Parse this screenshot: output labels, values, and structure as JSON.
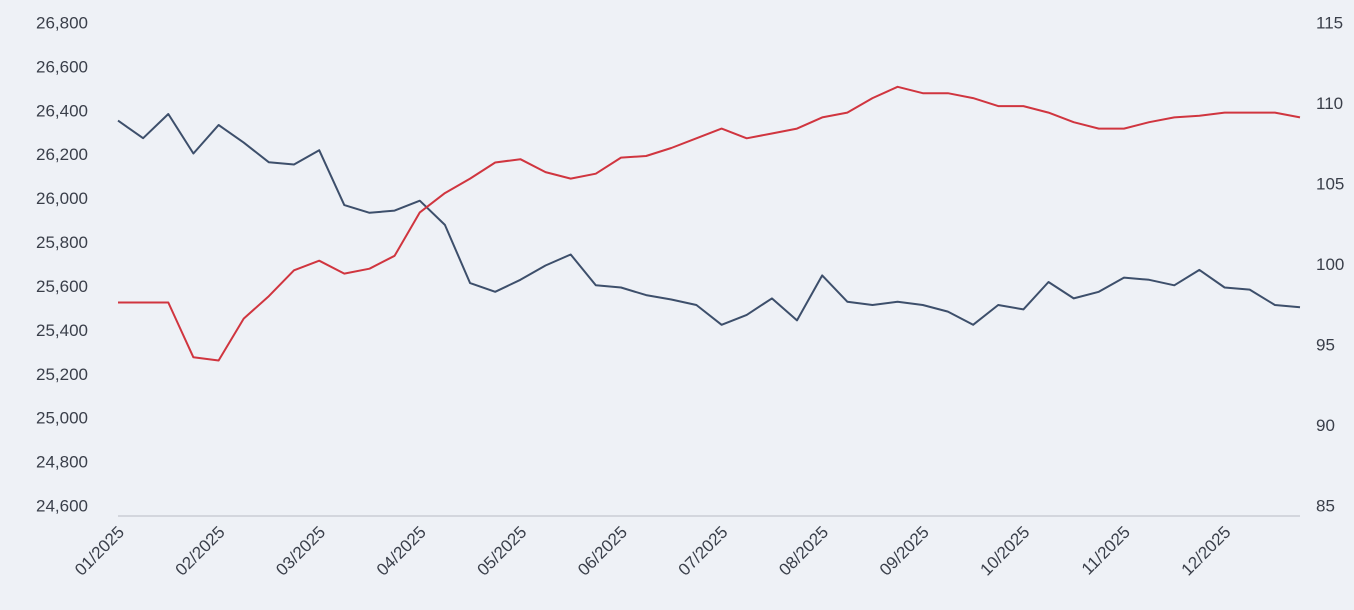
{
  "chart_data": {
    "type": "line",
    "categories": [
      "01/2025",
      null,
      null,
      null,
      "02/2025",
      null,
      null,
      null,
      "03/2025",
      null,
      null,
      null,
      "04/2025",
      null,
      null,
      null,
      "05/2025",
      null,
      null,
      null,
      "06/2025",
      null,
      null,
      null,
      "07/2025",
      null,
      null,
      null,
      "08/2025",
      null,
      null,
      null,
      "09/2025",
      null,
      null,
      null,
      "10/2025",
      null,
      null,
      null,
      "11/2025",
      null,
      null,
      null,
      "12/2025",
      null,
      null,
      null
    ],
    "series": [
      {
        "color": "#3d4f6b",
        "axis": "y",
        "values": [
          26360,
          26280,
          26390,
          26210,
          26340,
          26260,
          26170,
          26160,
          26225,
          25975,
          25940,
          25950,
          25995,
          25885,
          25620,
          25580,
          25635,
          25700,
          25750,
          25610,
          25600,
          25565,
          25545,
          25520,
          25430,
          25475,
          25550,
          25450,
          25655,
          25535,
          25520,
          25535,
          25520,
          25490,
          25430,
          25520,
          25500,
          25625,
          25550,
          25580,
          25645,
          25635,
          25610,
          25680,
          25600,
          25590,
          25520,
          25510
        ]
      },
      {
        "color": "#d0353f",
        "axis": "y2",
        "values": [
          97.7,
          97.7,
          97.7,
          94.3,
          94.1,
          96.7,
          98.1,
          99.7,
          100.3,
          99.5,
          99.8,
          100.6,
          103.3,
          104.5,
          105.4,
          106.4,
          106.6,
          105.8,
          105.4,
          105.7,
          106.7,
          106.8,
          107.3,
          107.9,
          108.5,
          107.9,
          108.2,
          108.5,
          109.2,
          109.5,
          110.4,
          111.1,
          110.7,
          110.7,
          110.4,
          109.9,
          109.9,
          109.5,
          108.9,
          108.5,
          108.5,
          108.9,
          109.2,
          109.3,
          109.5,
          109.5,
          109.5,
          109.2
        ]
      }
    ],
    "ylim": [
      24600,
      26800
    ],
    "yticks": [
      {
        "value": 24600,
        "label": "24,600"
      },
      {
        "value": 24800,
        "label": "24,800"
      },
      {
        "value": 25000,
        "label": "25,000"
      },
      {
        "value": 25200,
        "label": "25,200"
      },
      {
        "value": 25400,
        "label": "25,400"
      },
      {
        "value": 25600,
        "label": "25,600"
      },
      {
        "value": 25800,
        "label": "25,800"
      },
      {
        "value": 26000,
        "label": "26,000"
      },
      {
        "value": 26200,
        "label": "26,200"
      },
      {
        "value": 26400,
        "label": "26,400"
      },
      {
        "value": 26600,
        "label": "26,600"
      },
      {
        "value": 26800,
        "label": "26,800"
      }
    ],
    "y2lim": [
      85,
      115
    ],
    "y2ticks": [
      85,
      90,
      95,
      100,
      105,
      110,
      115
    ],
    "grid": false
  }
}
